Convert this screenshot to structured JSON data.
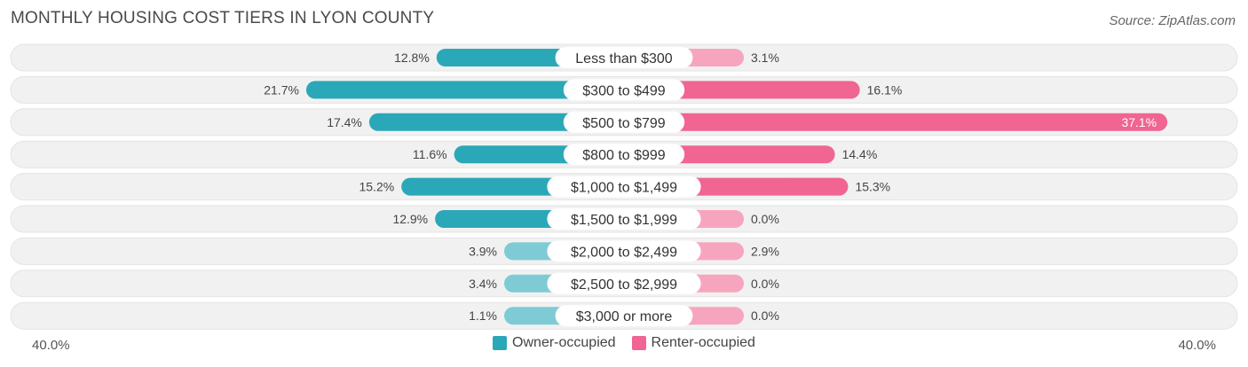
{
  "title": "MONTHLY HOUSING COST TIERS IN LYON COUNTY",
  "source": "Source: ZipAtlas.com",
  "colors": {
    "owner_dark": "#2aa8b8",
    "owner_light": "#7ecbd5",
    "renter_dark": "#f06591",
    "renter_light": "#f7a5be",
    "track": "#f1f1f1"
  },
  "chart_data": {
    "type": "bar",
    "orientation": "horizontal-diverging",
    "categories": [
      "Less than $300",
      "$300 to $499",
      "$500 to $799",
      "$800 to $999",
      "$1,000 to $1,499",
      "$1,500 to $1,999",
      "$2,000 to $2,499",
      "$2,500 to $2,999",
      "$3,000 or more"
    ],
    "series": [
      {
        "name": "Owner-occupied",
        "values": [
          12.8,
          21.7,
          17.4,
          11.6,
          15.2,
          12.9,
          3.9,
          3.4,
          1.1
        ],
        "labels": [
          "12.8%",
          "21.7%",
          "17.4%",
          "11.6%",
          "15.2%",
          "12.9%",
          "3.9%",
          "3.4%",
          "1.1%"
        ]
      },
      {
        "name": "Renter-occupied",
        "values": [
          3.1,
          16.1,
          37.1,
          14.4,
          15.3,
          0.0,
          2.9,
          0.0,
          0.0
        ],
        "labels": [
          "3.1%",
          "16.1%",
          "37.1%",
          "14.4%",
          "15.3%",
          "0.0%",
          "2.9%",
          "0.0%",
          "0.0%"
        ]
      }
    ],
    "xlim": [
      -40,
      40
    ],
    "axis_min_label": "40.0%",
    "axis_max_label": "40.0%",
    "legend_position": "bottom-center"
  }
}
